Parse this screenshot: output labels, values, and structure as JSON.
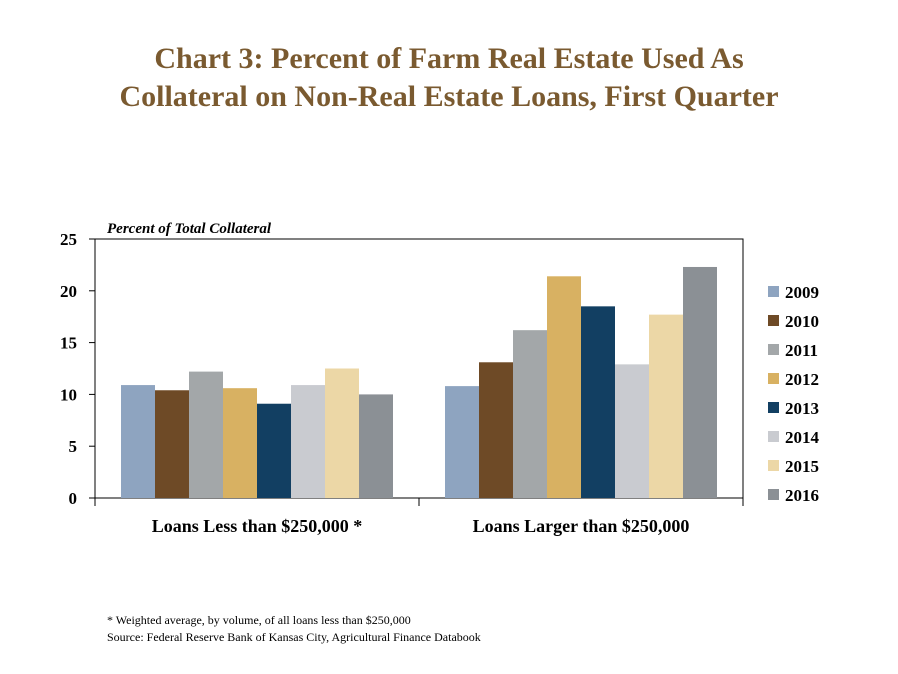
{
  "title": {
    "line1": "Chart 3: Percent of Farm Real Estate Used As",
    "line2": "Collateral on Non-Real Estate Loans, First Quarter"
  },
  "chart_data": {
    "type": "bar",
    "ylabel": "Percent of Total Collateral",
    "xlabel": "",
    "ylim": [
      0,
      25
    ],
    "yticks": [
      "0",
      "5",
      "10",
      "15",
      "20",
      "25"
    ],
    "grid": false,
    "legend_position": "right",
    "categories": [
      "Loans Less than $250,000 *",
      "Loans Larger than $250,000"
    ],
    "series": [
      {
        "name": "2009",
        "color": "#8ea4c0",
        "values": [
          10.9,
          10.8
        ]
      },
      {
        "name": "2010",
        "color": "#6e4a26",
        "values": [
          10.4,
          13.1
        ]
      },
      {
        "name": "2011",
        "color": "#a3a7a9",
        "values": [
          12.2,
          16.2
        ]
      },
      {
        "name": "2012",
        "color": "#d8b162",
        "values": [
          10.6,
          21.4
        ]
      },
      {
        "name": "2013",
        "color": "#123f62",
        "values": [
          9.1,
          18.5
        ]
      },
      {
        "name": "2014",
        "color": "#c9cbd0",
        "values": [
          10.9,
          12.9
        ]
      },
      {
        "name": "2015",
        "color": "#ecd7a6",
        "values": [
          12.5,
          17.7
        ]
      },
      {
        "name": "2016",
        "color": "#8b9095",
        "values": [
          10.0,
          22.3
        ]
      }
    ]
  },
  "footnotes": {
    "note": "* Weighted average, by volume, of all loans less than $250,000",
    "source": "Source: Federal Reserve Bank of Kansas City, Agricultural Finance Databook"
  }
}
